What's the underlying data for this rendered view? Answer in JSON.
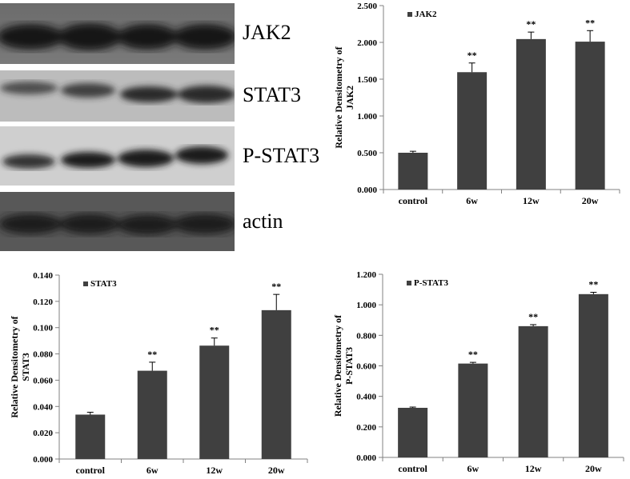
{
  "blots": [
    {
      "label": "JAK2"
    },
    {
      "label": "STAT3"
    },
    {
      "label": "P-STAT3"
    },
    {
      "label": "actin"
    }
  ],
  "colors": {
    "bar": "#404040",
    "axis": "#808080",
    "text": "#000000"
  },
  "chart_data": [
    {
      "type": "bar",
      "categories": [
        "control",
        "6w",
        "12w",
        "20w"
      ],
      "series": [
        {
          "name": "JAK2",
          "values": [
            0.5,
            1.595,
            2.045,
            2.01
          ],
          "errors": [
            0.02,
            0.125,
            0.095,
            0.15
          ]
        }
      ],
      "annotations": [
        "",
        "**",
        "**",
        "**"
      ],
      "ylabel": [
        "Relative Densitometry  of",
        "JAK2"
      ],
      "yticks": [
        "0.000",
        "0.500",
        "1.000",
        "1.500",
        "2.000",
        "2.500"
      ],
      "ylim": [
        0,
        2.5
      ],
      "legend": "top-left"
    },
    {
      "type": "bar",
      "categories": [
        "control",
        "6w",
        "12w",
        "20w"
      ],
      "series": [
        {
          "name": "STAT3",
          "values": [
            0.0338,
            0.0672,
            0.0863,
            0.1133
          ],
          "errors": [
            0.0018,
            0.0065,
            0.0058,
            0.012
          ]
        }
      ],
      "annotations": [
        "",
        "**",
        "**",
        "**"
      ],
      "ylabel": [
        "Relative Densitometry  of",
        "STAT3"
      ],
      "yticks": [
        "0.000",
        "0.020",
        "0.040",
        "0.060",
        "0.080",
        "0.100",
        "0.120",
        "0.140"
      ],
      "ylim": [
        0,
        0.14
      ],
      "legend": "top-left"
    },
    {
      "type": "bar",
      "categories": [
        "control",
        "6w",
        "12w",
        "20w"
      ],
      "series": [
        {
          "name": "P-STAT3",
          "values": [
            0.325,
            0.615,
            0.86,
            1.07
          ],
          "errors": [
            0.005,
            0.008,
            0.01,
            0.012
          ]
        }
      ],
      "annotations": [
        "",
        "**",
        "**",
        "**"
      ],
      "ylabel": [
        "Relative Densitometry  of",
        "P-STAT3"
      ],
      "yticks": [
        "0.000",
        "0.200",
        "0.400",
        "0.600",
        "0.800",
        "1.000",
        "1.200"
      ],
      "ylim": [
        0,
        1.2
      ],
      "legend": "top-left"
    }
  ]
}
